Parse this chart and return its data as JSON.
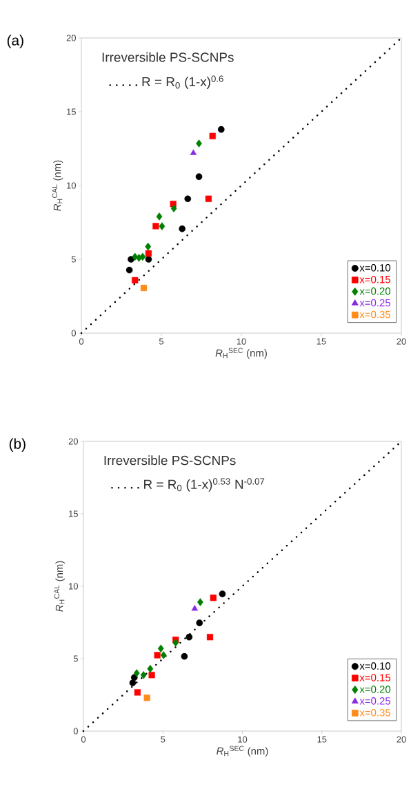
{
  "chart_data": [
    {
      "type": "scatter",
      "title": "(a)",
      "xlabel": "*R*$_{H}$$^{SEC}$ (nm)",
      "ylabel": "*R*$_{H}$$^{CAL}$ (nm)",
      "annotations": [
        "Irreversible PS-SCNPs"
      ],
      "xlim": [
        0,
        20
      ],
      "ylim": [
        0,
        20
      ],
      "xticks": [
        0,
        5,
        10,
        15,
        20
      ],
      "yticks": [
        0,
        5,
        10,
        15,
        20
      ],
      "grid": false,
      "legend": "bottom right",
      "series": [
        {
          "name": "R = R$_{0}$ (1-x)$^{0.6}$",
          "type": "line",
          "line_style": "dotted",
          "marker": "none",
          "color": "#000000",
          "x": [
            0,
            20
          ],
          "values": [
            0,
            20
          ]
        },
        {
          "name": "x=0.10",
          "marker": "circle",
          "color": "#000000",
          "x": [
            8.74,
            7.35,
            6.65,
            6.3,
            3.1,
            3.0,
            4.2
          ],
          "values": [
            13.8,
            10.6,
            9.1,
            7.07,
            5.0,
            4.27,
            5.0
          ]
        },
        {
          "name": "x=0.15",
          "marker": "square",
          "color": "#ff0000",
          "x": [
            8.2,
            7.95,
            5.74,
            4.65,
            4.2,
            3.35
          ],
          "values": [
            13.35,
            9.1,
            8.75,
            7.25,
            5.4,
            3.58
          ]
        },
        {
          "name": "x=0.20",
          "marker": "diamond",
          "color": "#008000",
          "x": [
            7.35,
            5.78,
            4.87,
            5.04,
            4.17,
            3.35,
            3.6,
            3.83
          ],
          "values": [
            12.85,
            8.45,
            7.9,
            7.24,
            5.86,
            5.17,
            5.1,
            5.17
          ]
        },
        {
          "name": "x=0.25",
          "marker": "triangle",
          "color": "#8a2be2",
          "x": [
            7.0
          ],
          "values": [
            12.2
          ]
        },
        {
          "name": "x=0.35",
          "marker": "square",
          "color": "#ff8c1a",
          "x": [
            3.9
          ],
          "values": [
            3.06
          ]
        }
      ]
    },
    {
      "type": "scatter",
      "title": "(b)",
      "xlabel": "*R*$_{H}$$^{SEC}$ (nm)",
      "ylabel": "*R*$_{H}$$^{CAL}$ (nm)",
      "annotations": [
        "Irreversible PS-SCNPs"
      ],
      "xlim": [
        0,
        20
      ],
      "ylim": [
        0,
        20
      ],
      "xticks": [
        0,
        5,
        10,
        15,
        20
      ],
      "yticks": [
        0,
        5,
        10,
        15,
        20
      ],
      "grid": false,
      "legend": "bottom right",
      "series": [
        {
          "name": "R = R$_{0}$ (1-x)$^{0.53}$ N$^{-0.07}$",
          "type": "line",
          "line_style": "dotted",
          "marker": "none",
          "color": "#000000",
          "x": [
            0,
            20
          ],
          "values": [
            0,
            20
          ]
        },
        {
          "name": "x=0.10",
          "marker": "circle",
          "color": "#000000",
          "x": [
            8.74,
            7.3,
            6.65,
            6.35,
            3.1,
            3.2
          ],
          "values": [
            9.47,
            7.47,
            6.49,
            5.16,
            3.33,
            3.7
          ]
        },
        {
          "name": "x=0.15",
          "marker": "square",
          "color": "#ff0000",
          "x": [
            8.17,
            7.96,
            5.8,
            4.65,
            4.3,
            3.4
          ],
          "values": [
            9.2,
            6.49,
            6.3,
            5.24,
            3.87,
            2.67
          ]
        },
        {
          "name": "x=0.20",
          "marker": "diamond",
          "color": "#008000",
          "x": [
            7.35,
            5.8,
            4.87,
            5.04,
            4.2,
            3.35,
            3.78
          ],
          "values": [
            8.9,
            6.1,
            5.7,
            5.24,
            4.3,
            4.0,
            3.87
          ]
        },
        {
          "name": "x=0.25",
          "marker": "triangle",
          "color": "#8a2be2",
          "x": [
            7.0
          ],
          "values": [
            8.45
          ]
        },
        {
          "name": "x=0.35",
          "marker": "square",
          "color": "#ff8c1a",
          "x": [
            4.0
          ],
          "values": [
            2.3
          ]
        }
      ]
    }
  ]
}
